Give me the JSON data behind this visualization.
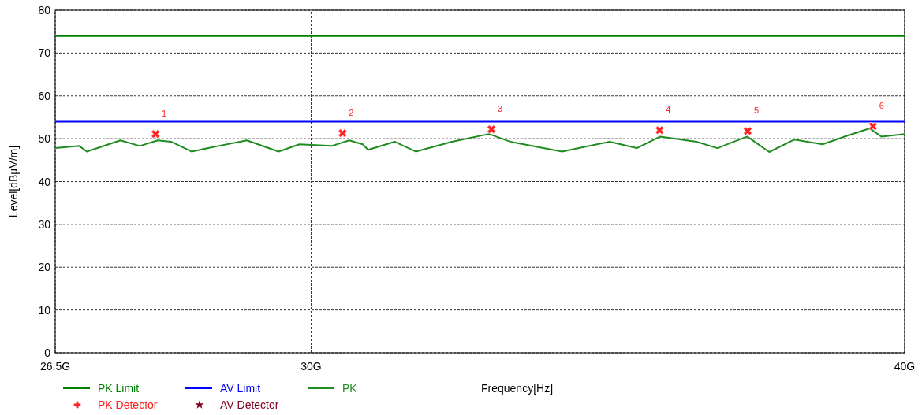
{
  "chart_data": {
    "type": "line",
    "xlabel": "Frequency[Hz]",
    "ylabel": "Level[dBµV/m]",
    "log": "x",
    "grid": true,
    "legend": "bottom",
    "xlim": [
      26.5,
      40
    ],
    "xticks": [
      {
        "value": 26.5,
        "label": "26.5G"
      },
      {
        "value": 30,
        "label": "30G"
      },
      {
        "value": 40,
        "label": "40G"
      }
    ],
    "ylim": [
      0,
      80
    ],
    "yticks": [
      0,
      10,
      20,
      30,
      40,
      50,
      60,
      70,
      80
    ],
    "series": [
      {
        "name": "PK Limit",
        "color": "#008000",
        "x": [
          26.5,
          40
        ],
        "values": [
          74,
          74
        ]
      },
      {
        "name": "AV Limit",
        "color": "#0000ff",
        "x": [
          26.5,
          40
        ],
        "values": [
          54,
          54
        ]
      },
      {
        "name": "PK",
        "color": "#1e8c1e",
        "x": [
          26.5,
          26.81,
          26.91,
          27.35,
          27.61,
          27.85,
          28.03,
          28.31,
          28.68,
          29.08,
          29.53,
          29.83,
          30.3,
          30.56,
          30.76,
          30.84,
          31.24,
          31.56,
          32.12,
          32.7,
          33.04,
          33.88,
          34.67,
          35.13,
          35.53,
          36.16,
          36.53,
          37.06,
          37.46,
          37.92,
          38.44,
          38.95,
          39.33,
          39.55,
          40
        ],
        "values": [
          47.8,
          48.3,
          47.0,
          49.6,
          48.3,
          49.6,
          49.3,
          47.0,
          48.3,
          49.6,
          47.0,
          48.7,
          48.3,
          49.6,
          48.7,
          47.4,
          49.3,
          47.0,
          49.3,
          51.1,
          49.3,
          47.0,
          49.3,
          47.8,
          50.5,
          49.3,
          47.8,
          50.5,
          46.9,
          49.8,
          48.7,
          50.9,
          52.4,
          50.5,
          51.1
        ]
      },
      {
        "name": "PK Detector",
        "type": "scatter",
        "marker": "cross",
        "color": "#ff2020",
        "x": [
          27.82,
          30.46,
          32.74,
          35.52,
          37.07,
          39.39
        ],
        "values": [
          51.1,
          51.3,
          52.2,
          52.0,
          51.8,
          52.9
        ]
      },
      {
        "name": "AV Detector",
        "type": "scatter",
        "marker": "star",
        "color": "#800020"
      }
    ],
    "annotations": [
      {
        "text": "1",
        "x": 27.82,
        "y": 51.1
      },
      {
        "text": "2",
        "x": 30.46,
        "y": 51.3
      },
      {
        "text": "3",
        "x": 32.74,
        "y": 52.2
      },
      {
        "text": "4",
        "x": 35.52,
        "y": 52.0
      },
      {
        "text": "5",
        "x": 37.07,
        "y": 51.8
      },
      {
        "text": "6",
        "x": 39.39,
        "y": 52.9
      }
    ]
  }
}
